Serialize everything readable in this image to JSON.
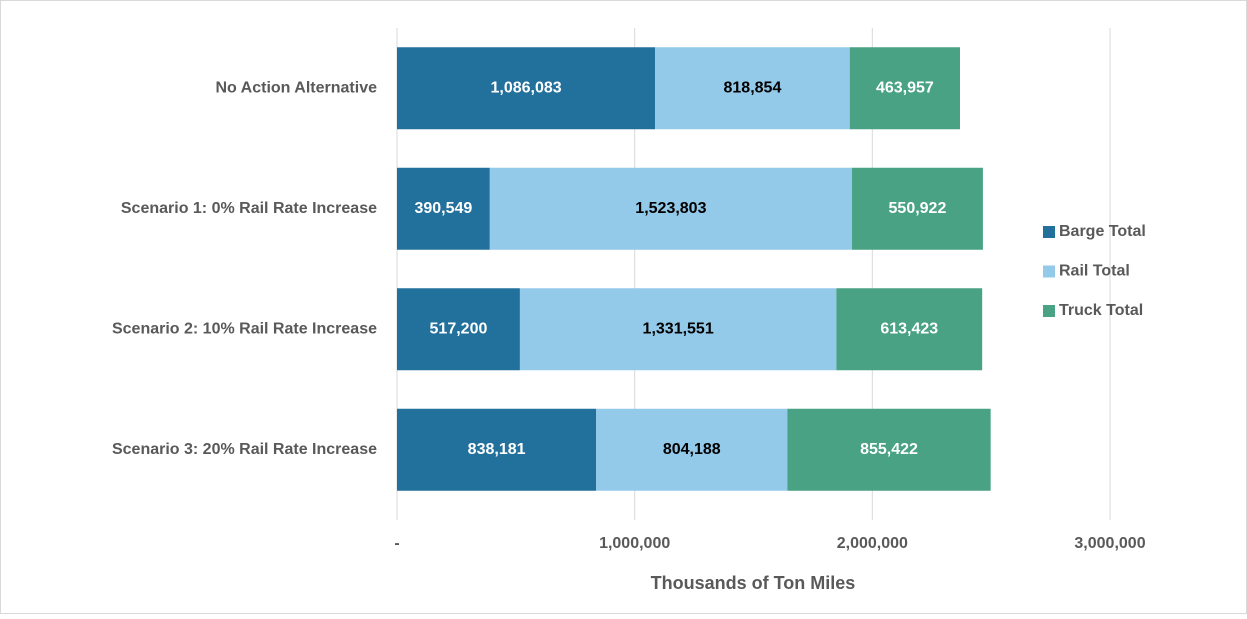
{
  "chart_data": {
    "type": "stacked_barh",
    "categories": [
      "No Action Alternative",
      "Scenario 1: 0% Rail Rate Increase",
      "Scenario 2: 10% Rail Rate Increase",
      "Scenario 3: 20% Rail Rate Increase"
    ],
    "series": [
      {
        "name": "Barge Total",
        "color": "#22709c",
        "label_color": "#ffffff",
        "values": [
          1086083,
          390549,
          517200,
          838181
        ],
        "value_labels": [
          "1,086,083",
          "390,549",
          "517,200",
          "838,181"
        ]
      },
      {
        "name": "Rail Total",
        "color": "#93c9e9",
        "label_color": "#000000",
        "values": [
          818854,
          1523803,
          1331551,
          804188
        ],
        "value_labels": [
          "818,854",
          "1,523,803",
          "1,331,551",
          "804,188"
        ]
      },
      {
        "name": "Truck Total",
        "color": "#48a283",
        "label_color": "#ffffff",
        "values": [
          463957,
          550922,
          613423,
          855422
        ],
        "value_labels": [
          "463,957",
          "550,922",
          "613,423",
          "855,422"
        ]
      }
    ],
    "xlabel": "Thousands of Ton Miles",
    "xlim": [
      0,
      3000000
    ],
    "xticks": [
      {
        "value": 0,
        "label": "-"
      },
      {
        "value": 1000000,
        "label": "1,000,000"
      },
      {
        "value": 2000000,
        "label": "2,000,000"
      },
      {
        "value": 3000000,
        "label": "3,000,000"
      }
    ],
    "grid": true,
    "legend": "right"
  }
}
